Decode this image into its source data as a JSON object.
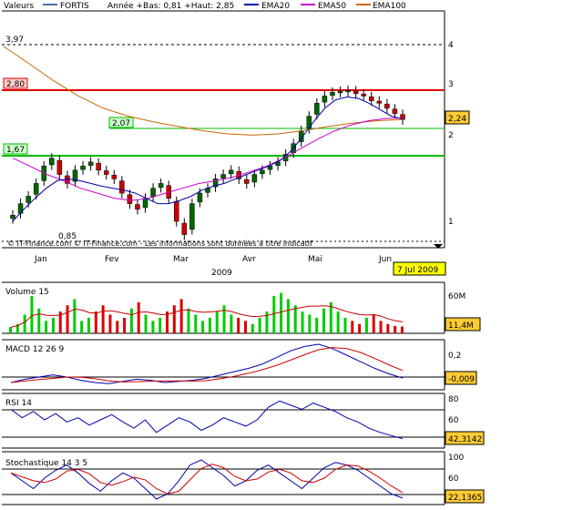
{
  "header": {
    "valeurs_label": "Valeurs",
    "series_fortis": "FORTIS",
    "annee_text": "Année +Bas: 0,81 +Haut: 2,85",
    "ema20_label": "EMA20",
    "ema50_label": "EMA50",
    "ema100_label": "EMA100"
  },
  "colors": {
    "fortis": "#4a6fa5",
    "ema20": "#0000aa",
    "ema50": "#cc00cc",
    "ema100": "#cc6600",
    "resistance": "#e00000",
    "support": "#00bb00",
    "label_badge": "#ffcc33",
    "date_badge": "#ffff00",
    "candle_up": "#006600",
    "candle_down": "#cc0000",
    "volume_up": "#00cc00",
    "volume_down": "#dd0000"
  },
  "price_panel": {
    "y_ticks": [
      "4",
      "3",
      "2",
      "1"
    ],
    "level_397": "3,97",
    "level_280": "2,80",
    "level_207": "2,07",
    "level_167": "1,67",
    "low_label": "0,85",
    "last_value": "2,24",
    "copyright": "© IT-Finance.com © IT-Finance.com - Les informations sont données à titre indicatif",
    "x_months": [
      "Jan",
      "Fev",
      "Mar",
      "Avr",
      "Mai",
      "Jun"
    ],
    "year": "2009",
    "date_badge": "7 Jul 2009"
  },
  "volume_panel": {
    "title": "Volume 15",
    "y_tick": "60M",
    "last_value": "11,4M"
  },
  "macd_panel": {
    "title": "MACD 12 26 9",
    "y_tick": "0,2",
    "last_value": "-0,009"
  },
  "rsi_panel": {
    "title": "RSI 14",
    "y_ticks": [
      "80",
      "60",
      "40"
    ],
    "last_value": "42,3142"
  },
  "stoch_panel": {
    "title": "Stochastique 14 3 5",
    "y_ticks": [
      "100",
      "60",
      "20"
    ],
    "last_value": "22,1365"
  },
  "chart_data": {
    "type": "candlestick",
    "title": "FORTIS",
    "x": [
      "Jan",
      "Fev",
      "Mar",
      "Avr",
      "Mai",
      "Jun"
    ],
    "price_range": [
      0.81,
      2.85
    ],
    "price_close_path": [
      1.05,
      1.15,
      1.22,
      1.35,
      1.55,
      1.65,
      1.45,
      1.35,
      1.5,
      1.55,
      1.6,
      1.5,
      1.45,
      1.4,
      1.25,
      1.15,
      1.1,
      1.2,
      1.3,
      1.35,
      1.2,
      1.0,
      0.9,
      1.15,
      1.25,
      1.3,
      1.4,
      1.45,
      1.5,
      1.4,
      1.35,
      1.45,
      1.5,
      1.55,
      1.6,
      1.7,
      1.85,
      2.05,
      2.3,
      2.55,
      2.7,
      2.78,
      2.8,
      2.82,
      2.75,
      2.7,
      2.6,
      2.55,
      2.45,
      2.35,
      2.24
    ],
    "ema20_path": [
      1.0,
      1.1,
      1.2,
      1.3,
      1.38,
      1.4,
      1.38,
      1.35,
      1.32,
      1.3,
      1.28,
      1.25,
      1.2,
      1.15,
      1.15,
      1.18,
      1.22,
      1.28,
      1.32,
      1.35,
      1.4,
      1.45,
      1.5,
      1.55,
      1.62,
      1.75,
      1.95,
      2.2,
      2.45,
      2.62,
      2.68,
      2.65,
      2.55,
      2.42,
      2.3,
      2.25
    ],
    "ema50_path": [
      1.65,
      1.55,
      1.45,
      1.38,
      1.3,
      1.25,
      1.2,
      1.18,
      1.2,
      1.25,
      1.3,
      1.35,
      1.38,
      1.42,
      1.48,
      1.55,
      1.65,
      1.78,
      1.92,
      2.05,
      2.15,
      2.22,
      2.26,
      2.27
    ],
    "ema100_path": [
      4.0,
      3.5,
      3.05,
      2.7,
      2.45,
      2.3,
      2.2,
      2.12,
      2.05,
      2.0,
      1.98,
      2.0,
      2.05,
      2.12,
      2.18,
      2.22,
      2.24
    ],
    "volume_values": [
      10,
      15,
      30,
      60,
      40,
      20,
      25,
      35,
      45,
      55,
      20,
      25,
      35,
      45,
      30,
      20,
      25,
      40,
      50,
      30,
      20,
      25,
      35,
      45,
      55,
      40,
      30,
      20,
      25,
      35,
      45,
      30,
      25,
      20,
      15,
      25,
      35,
      60,
      65,
      55,
      45,
      35,
      30,
      25,
      40,
      50,
      35,
      25,
      20,
      15,
      25,
      30,
      20,
      15,
      12,
      11
    ],
    "macd_values": [
      -0.05,
      -0.02,
      0.0,
      0.02,
      0.0,
      -0.03,
      -0.05,
      -0.06,
      -0.04,
      -0.02,
      -0.03,
      -0.05,
      -0.04,
      -0.03,
      -0.01,
      0.02,
      0.05,
      0.08,
      0.12,
      0.18,
      0.24,
      0.28,
      0.3,
      0.26,
      0.2,
      0.14,
      0.08,
      0.03,
      -0.009
    ],
    "rsi_values": [
      70,
      62,
      68,
      60,
      66,
      58,
      62,
      55,
      60,
      65,
      58,
      52,
      60,
      48,
      55,
      62,
      58,
      50,
      55,
      62,
      58,
      54,
      60,
      72,
      78,
      74,
      70,
      76,
      72,
      68,
      62,
      58,
      52,
      48,
      45,
      42
    ],
    "stoch_values": [
      70,
      55,
      40,
      60,
      75,
      85,
      70,
      50,
      35,
      55,
      70,
      60,
      40,
      20,
      30,
      55,
      85,
      95,
      80,
      65,
      45,
      55,
      75,
      85,
      70,
      55,
      40,
      60,
      80,
      90,
      85,
      75,
      60,
      45,
      30,
      22
    ]
  }
}
